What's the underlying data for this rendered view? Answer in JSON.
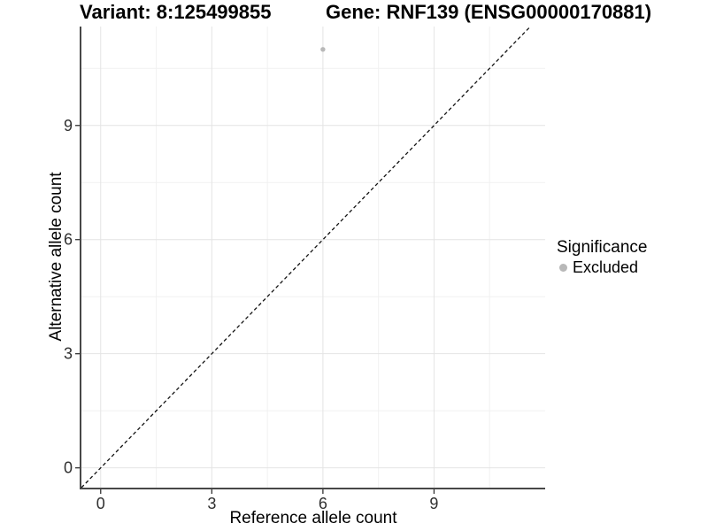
{
  "chart_data": {
    "type": "scatter",
    "title_left": "Variant: 8:125499855",
    "title_right": "Gene: RNF139 (ENSG00000170881)",
    "xlabel": "Reference allele count",
    "ylabel": "Alternative allele count",
    "x_ticks": [
      0,
      3,
      6,
      9
    ],
    "y_ticks": [
      0,
      3,
      6,
      9
    ],
    "x_minor": [
      1.5,
      4.5,
      7.5,
      10.5
    ],
    "y_minor": [
      1.5,
      4.5,
      7.5,
      10.5
    ],
    "xlim": [
      -0.52,
      12.0
    ],
    "ylim": [
      -0.52,
      11.6
    ],
    "grid": true,
    "points": [
      {
        "x": 6,
        "y": 11,
        "series": "Excluded"
      }
    ],
    "reference_line": {
      "kind": "identity",
      "slope": 1,
      "intercept": 0,
      "style": "dashed",
      "color": "#111111"
    },
    "legend": {
      "title": "Significance",
      "position": "right",
      "items": [
        {
          "label": "Excluded",
          "color": "#b8b8b8"
        }
      ]
    },
    "colors": {
      "point": "#b8b8b8",
      "grid_major": "#e4e4e4",
      "grid_minor": "#f1f1f1",
      "axis_line": "#484848",
      "tick_mark": "#333333",
      "tick_label": "#303030"
    }
  }
}
